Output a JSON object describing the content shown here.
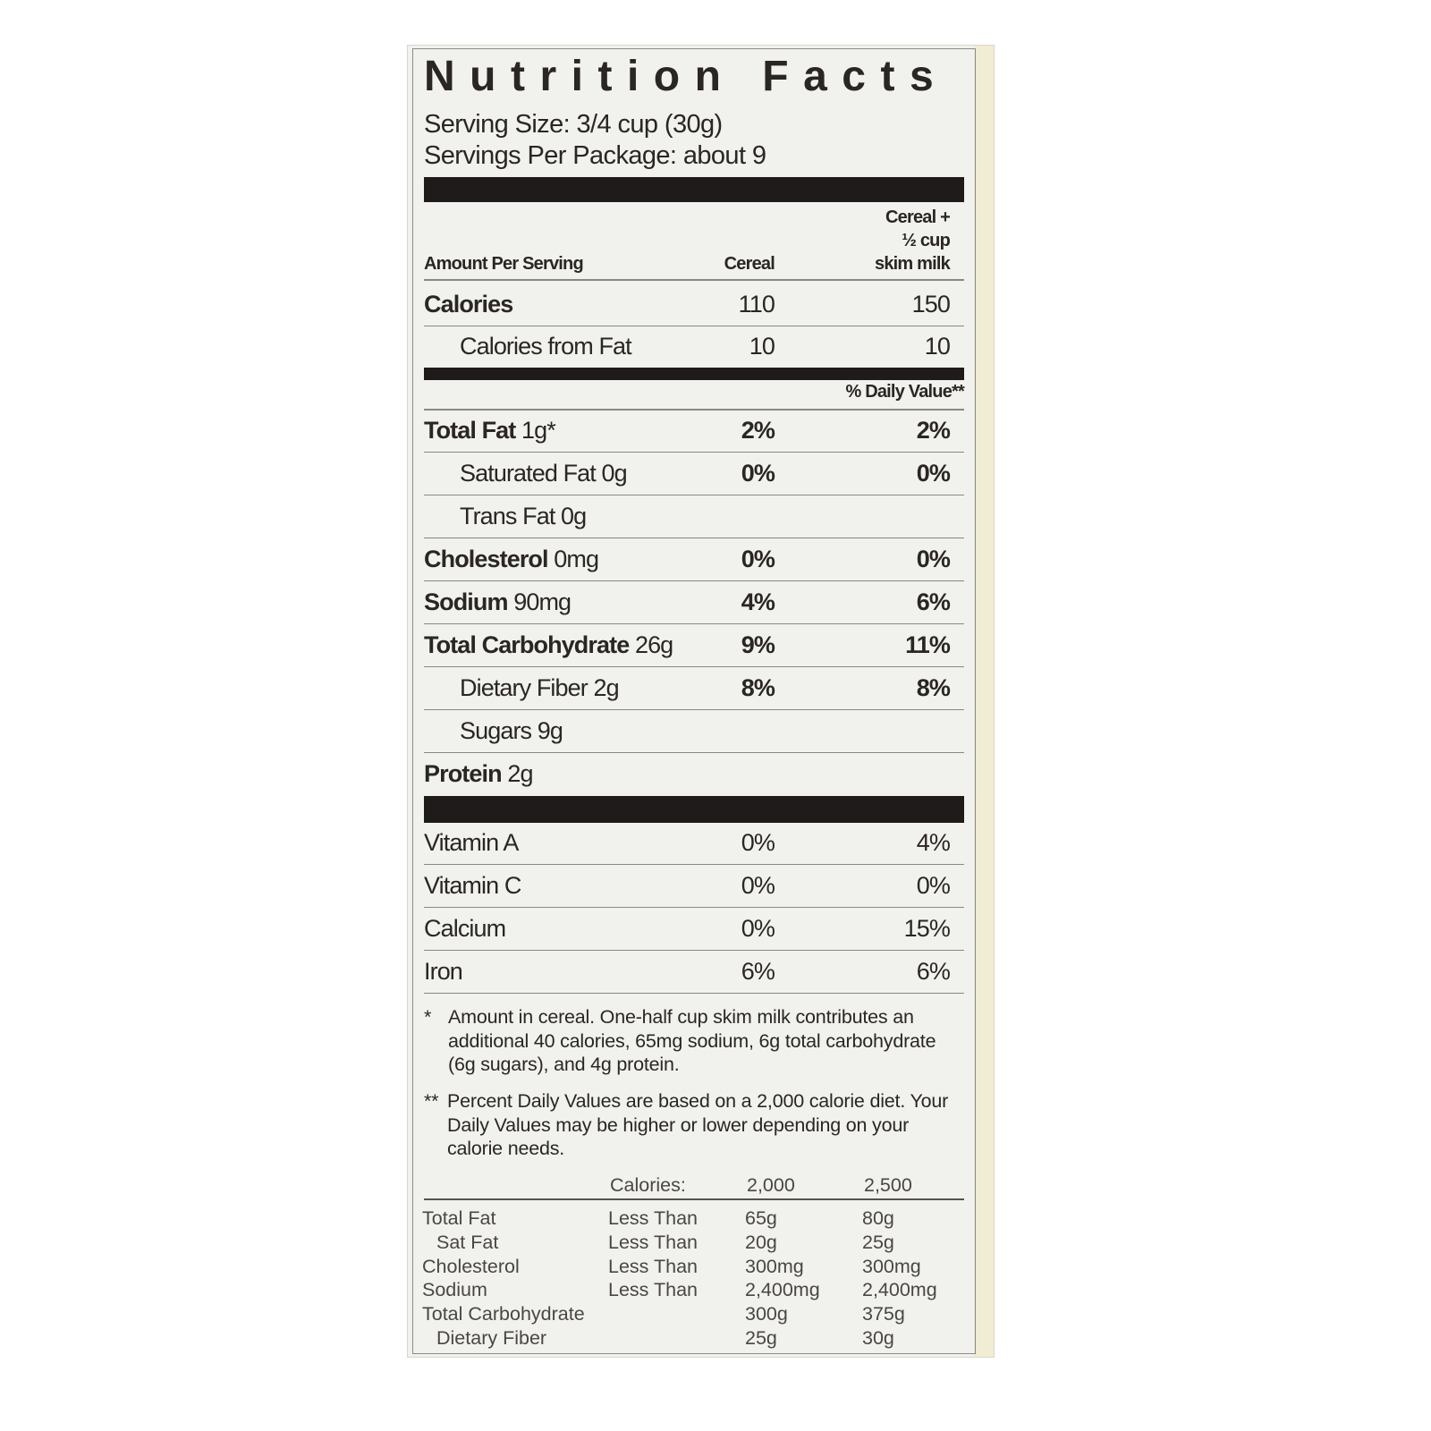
{
  "title": "Nutrition Facts",
  "serving_size": "Serving Size: 3/4 cup (30g)",
  "servings_per_package": "Servings Per Package: about 9",
  "header": {
    "amount_per_serving": "Amount Per Serving",
    "col1": "Cereal",
    "col2_line1": "Cereal +",
    "col2_line2": "½ cup",
    "col2_line3": "skim milk"
  },
  "calories": {
    "label": "Calories",
    "cereal": "110",
    "with_milk": "150"
  },
  "calories_from_fat": {
    "label": "Calories from Fat",
    "cereal": "10",
    "with_milk": "10"
  },
  "daily_value_header": "% Daily Value**",
  "nutrients": [
    {
      "name": "Total Fat",
      "amount": "1g*",
      "cereal": "2%",
      "with_milk": "2%",
      "bold": true,
      "indent": false
    },
    {
      "name": "Saturated Fat",
      "amount": "0g",
      "cereal": "0%",
      "with_milk": "0%",
      "bold": false,
      "indent": true
    },
    {
      "name": "Trans Fat",
      "amount": "0g",
      "cereal": "",
      "with_milk": "",
      "bold": false,
      "indent": true
    },
    {
      "name": "Cholesterol",
      "amount": "0mg",
      "cereal": "0%",
      "with_milk": "0%",
      "bold": true,
      "indent": false
    },
    {
      "name": "Sodium",
      "amount": "90mg",
      "cereal": "4%",
      "with_milk": "6%",
      "bold": true,
      "indent": false
    },
    {
      "name": "Total Carbohydrate",
      "amount": "26g",
      "cereal": "9%",
      "with_milk": "11%",
      "bold": true,
      "indent": false
    },
    {
      "name": "Dietary Fiber",
      "amount": "2g",
      "cereal": "8%",
      "with_milk": "8%",
      "bold": false,
      "indent": true
    },
    {
      "name": "Sugars",
      "amount": "9g",
      "cereal": "",
      "with_milk": "",
      "bold": false,
      "indent": true
    },
    {
      "name": "Protein",
      "amount": "2g",
      "cereal": "",
      "with_milk": "",
      "bold": true,
      "indent": false
    }
  ],
  "vitamins": [
    {
      "name": "Vitamin A",
      "cereal": "0%",
      "with_milk": "4%"
    },
    {
      "name": "Vitamin C",
      "cereal": "0%",
      "with_milk": "0%"
    },
    {
      "name": "Calcium",
      "cereal": "0%",
      "with_milk": "15%"
    },
    {
      "name": "Iron",
      "cereal": "6%",
      "with_milk": "6%"
    }
  ],
  "footnote1": {
    "mark": "*",
    "text": "Amount in cereal. One-half cup skim milk contributes an additional 40 calories, 65mg sodium, 6g total carbohydrate (6g sugars), and 4g protein."
  },
  "footnote2": {
    "mark": "**",
    "text": "Percent Daily Values are based on a 2,000 calorie diet. Your Daily Values may be higher or lower depending on your calorie needs."
  },
  "dv_table": {
    "header": [
      "",
      "Calories:",
      "2,000",
      "2,500"
    ],
    "rows": [
      [
        "Total Fat",
        "Less Than",
        "65g",
        "80g"
      ],
      [
        "  Sat Fat",
        "Less Than",
        "20g",
        "25g"
      ],
      [
        "Cholesterol",
        "Less Than",
        "300mg",
        "300mg"
      ],
      [
        "Sodium",
        "Less Than",
        "2,400mg",
        "2,400mg"
      ],
      [
        "Total Carbohydrate",
        "",
        "300g",
        "375g"
      ],
      [
        "  Dietary Fiber",
        "",
        "25g",
        "30g"
      ]
    ]
  }
}
